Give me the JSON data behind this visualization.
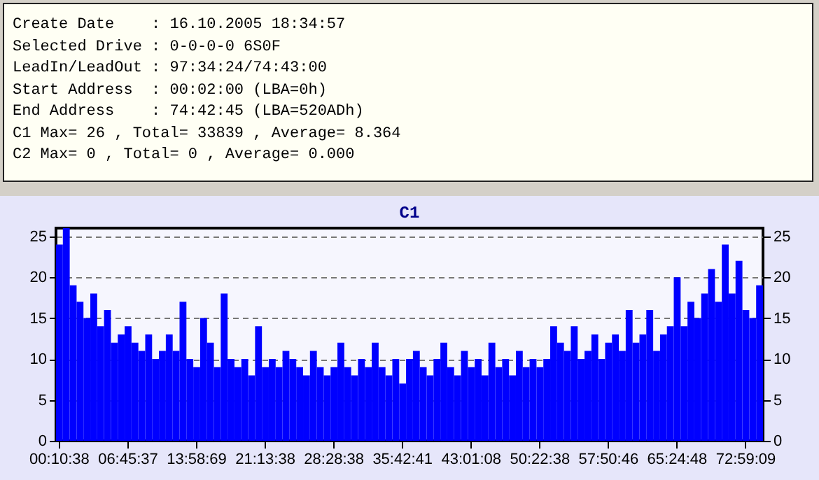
{
  "chart_data": {
    "type": "bar",
    "title": "C1",
    "annotations": [
      "Create Date    : 16.10.2005 18:34:57",
      "Selected Drive : 0-0-0-0 6S0F",
      "LeadIn/LeadOut : 97:34:24/74:43:00",
      "Start Address  : 00:02:00 (LBA=0h)",
      "End Address    : 74:42:45 (LBA=520ADh)",
      "C1 Max= 26 , Total= 33839 , Average= 8.364",
      "C2 Max= 0 , Total= 0 , Average= 0.000"
    ],
    "categories": [
      "00:10:38",
      null,
      null,
      null,
      null,
      null,
      null,
      null,
      null,
      null,
      "06:45:37",
      null,
      null,
      null,
      null,
      null,
      null,
      null,
      null,
      null,
      "13:58:69",
      null,
      null,
      null,
      null,
      null,
      null,
      null,
      null,
      null,
      "21:13:38",
      null,
      null,
      null,
      null,
      null,
      null,
      null,
      null,
      null,
      "28:28:38",
      null,
      null,
      null,
      null,
      null,
      null,
      null,
      null,
      null,
      "35:42:41",
      null,
      null,
      null,
      null,
      null,
      null,
      null,
      null,
      null,
      "43:01:08",
      null,
      null,
      null,
      null,
      null,
      null,
      null,
      null,
      null,
      "50:22:38",
      null,
      null,
      null,
      null,
      null,
      null,
      null,
      null,
      null,
      "57:50:46",
      null,
      null,
      null,
      null,
      null,
      null,
      null,
      null,
      null,
      "65:24:48",
      null,
      null,
      null,
      null,
      null,
      null,
      null,
      null,
      null,
      "72:59:09",
      null,
      null
    ],
    "series": [
      {
        "color": "#0000ff",
        "values": [
          24,
          26,
          19,
          17,
          15,
          18,
          14,
          16,
          12,
          13,
          14,
          12,
          11,
          13,
          10,
          11,
          13,
          11,
          17,
          10,
          9,
          15,
          12,
          9,
          18,
          10,
          9,
          10,
          8,
          14,
          9,
          10,
          9,
          11,
          10,
          9,
          8,
          11,
          9,
          8,
          9,
          12,
          9,
          8,
          10,
          9,
          12,
          9,
          8,
          10,
          7,
          10,
          11,
          9,
          8,
          10,
          12,
          9,
          8,
          11,
          9,
          10,
          8,
          12,
          9,
          10,
          8,
          11,
          9,
          10,
          9,
          10,
          14,
          12,
          11,
          14,
          10,
          11,
          13,
          10,
          12,
          13,
          11,
          16,
          12,
          13,
          16,
          11,
          13,
          14,
          20,
          14,
          17,
          15,
          18,
          21,
          17,
          24,
          18,
          22,
          16,
          15,
          19
        ]
      }
    ],
    "ylim": [
      0,
      26
    ],
    "yticks": [
      0,
      5,
      10,
      15,
      20,
      25
    ],
    "y2lim": [
      0,
      26
    ],
    "y2ticks": [
      0,
      5,
      10,
      15,
      20,
      25
    ],
    "grid": "y"
  }
}
